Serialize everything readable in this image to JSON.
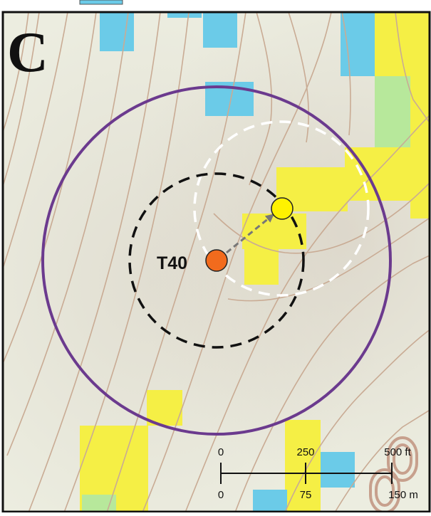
{
  "panel": {
    "letter": "C"
  },
  "turbine": {
    "label": "T40",
    "color": "#f26b1d"
  },
  "displaced_point": {
    "color": "#fff200"
  },
  "scale_bar": {
    "feet_labels": [
      "0",
      "250",
      "500 ft"
    ],
    "meter_labels": [
      "0",
      "75",
      "150 m"
    ]
  },
  "colors": {
    "background": "#ecede0",
    "contour": "#c9ab94",
    "index_contour": "#c7a08d",
    "outer_circle": "#6b3a8e",
    "inner_circle": "#111111",
    "offset_circle": "#ffffff",
    "arrow": "#777777",
    "blue_cells": "#6bcbe8",
    "yellow_cells": "#f5ef45",
    "green_cells": "#b7e89b"
  },
  "icons": {
    "legend_swatch": "blue-legend-swatch-icon",
    "arrow": "arrow-icon"
  }
}
